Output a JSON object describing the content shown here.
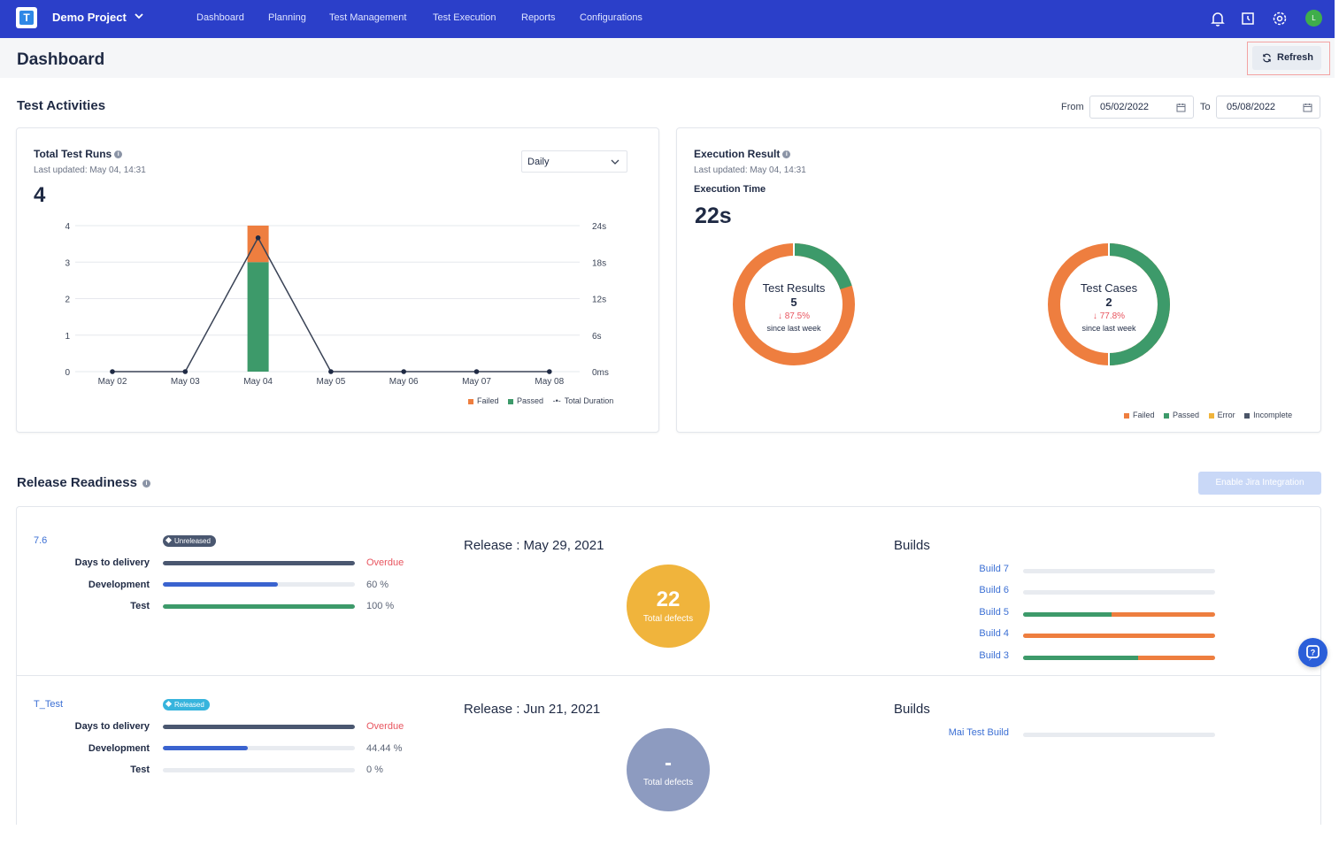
{
  "nav": {
    "project": "Demo Project",
    "links": [
      "Dashboard",
      "Planning",
      "Test Management",
      "Test Execution",
      "Reports",
      "Configurations"
    ],
    "icons": [
      "bell-icon",
      "history-icon",
      "gear-icon"
    ],
    "avatar": "L"
  },
  "page": {
    "title": "Dashboard",
    "refresh_label": "Refresh"
  },
  "activities": {
    "title": "Test Activities",
    "from_label": "From",
    "from_value": "05/02/2022",
    "to_label": "To",
    "to_value": "05/08/2022"
  },
  "total_runs": {
    "title": "Total Test Runs",
    "updated": "Last updated: May 04, 14:31",
    "count": "4",
    "period": "Daily",
    "legend": [
      "Failed",
      "Passed",
      "Total Duration"
    ]
  },
  "chart_data": {
    "type": "bar",
    "categories": [
      "May 02",
      "May 03",
      "May 04",
      "May 05",
      "May 06",
      "May 07",
      "May 08"
    ],
    "series": [
      {
        "name": "Failed",
        "values": [
          0,
          0,
          1,
          0,
          0,
          0,
          0
        ]
      },
      {
        "name": "Passed",
        "values": [
          0,
          0,
          3,
          0,
          0,
          0,
          0
        ]
      },
      {
        "name": "Total Duration",
        "values": [
          0,
          0,
          22,
          0,
          0,
          0,
          0
        ]
      }
    ],
    "ylim": [
      0,
      4
    ],
    "yticks": [
      "0",
      "1",
      "2",
      "3",
      "4"
    ],
    "y2ticks": [
      "0ms",
      "6s",
      "12s",
      "18s",
      "24s"
    ],
    "y2lim": [
      0,
      24
    ],
    "grid": true,
    "legend_position": "bottom-right",
    "colors": {
      "failed": "#ee7e3f",
      "passed": "#3d9a6a",
      "duration": "#3a4356"
    }
  },
  "execution": {
    "title": "Execution Result",
    "updated": "Last updated: May 04, 14:31",
    "time_label": "Execution Time",
    "time_value": "22s",
    "donuts": [
      {
        "title": "Test Results",
        "count": "5",
        "change": "↓ 87.5%",
        "since": "since last week",
        "passed_fraction": 0.2,
        "failed_fraction": 0.8
      },
      {
        "title": "Test Cases",
        "count": "2",
        "change": "↓ 77.8%",
        "since": "since last week",
        "passed_fraction": 0.5,
        "failed_fraction": 0.5
      }
    ],
    "legend": [
      "Failed",
      "Passed",
      "Error",
      "Incomplete"
    ]
  },
  "release": {
    "title": "Release Readiness",
    "jira_label": "Enable Jira Integration",
    "items": [
      {
        "name": "7.6",
        "status": "Unreleased",
        "rows": [
          {
            "label": "Days to delivery",
            "value": "Overdue",
            "fraction": 1.0
          },
          {
            "label": "Development",
            "value": "60 %",
            "fraction": 0.6
          },
          {
            "label": "Test",
            "value": "100 %",
            "fraction": 1.0
          }
        ],
        "release_date": "Release : May 29, 2021",
        "defects": "22",
        "defects_label": "Total defects",
        "builds_title": "Builds",
        "builds": [
          {
            "name": "Build 7",
            "passed": 0,
            "failed": 0
          },
          {
            "name": "Build 6",
            "passed": 0,
            "failed": 0
          },
          {
            "name": "Build 5",
            "passed": 0.46,
            "failed": 0.54
          },
          {
            "name": "Build 4",
            "passed": 0,
            "failed": 1.0
          },
          {
            "name": "Build 3",
            "passed": 0.6,
            "failed": 0.4
          }
        ]
      },
      {
        "name": "T_Test",
        "status": "Released",
        "rows": [
          {
            "label": "Days to delivery",
            "value": "Overdue",
            "fraction": 1.0
          },
          {
            "label": "Development",
            "value": "44.44 %",
            "fraction": 0.4444
          },
          {
            "label": "Test",
            "value": "0 %",
            "fraction": 0
          }
        ],
        "release_date": "Release : Jun 21, 2021",
        "defects": "-",
        "defects_label": "Total defects",
        "builds_title": "Builds",
        "builds": [
          {
            "name": "Mai Test Build",
            "passed": 0,
            "failed": 0
          }
        ]
      }
    ]
  }
}
